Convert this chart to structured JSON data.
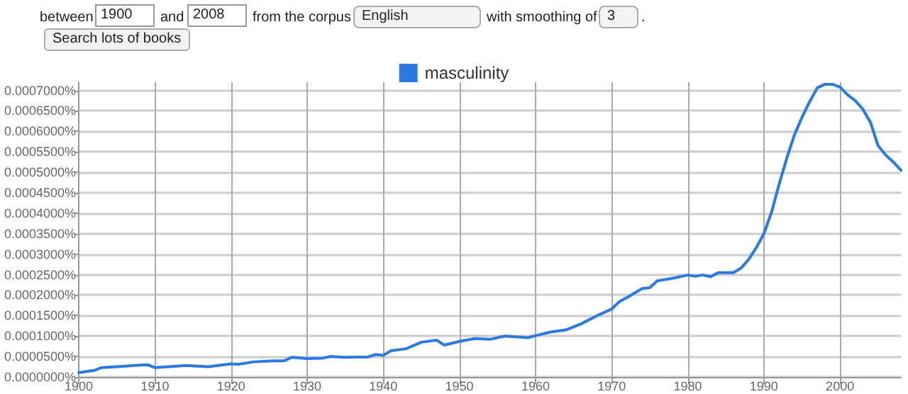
{
  "chart_data": {
    "type": "line",
    "annotations": [
      "between",
      "1900",
      "and",
      "2008",
      "from the corpus",
      "English",
      "with smoothing of",
      "3",
      ".",
      "Search lots of books"
    ],
    "x": [
      1900,
      1902,
      1903,
      1905,
      1908,
      1909,
      1910,
      1914,
      1917,
      1920,
      1921,
      1923,
      1925,
      1927,
      1928,
      1930,
      1932,
      1933,
      1935,
      1938,
      1939,
      1940,
      1941,
      1943,
      1945,
      1947,
      1948,
      1950,
      1952,
      1954,
      1956,
      1959,
      1960,
      1962,
      1964,
      1966,
      1968,
      1970,
      1971,
      1972,
      1974,
      1975,
      1976,
      1978,
      1980,
      1981,
      1982,
      1983,
      1984,
      1986,
      1987,
      1988,
      1989,
      1990,
      1991,
      1992,
      1993,
      1994,
      1995,
      1996,
      1997,
      1998,
      1999,
      2000,
      2001,
      2002,
      2003,
      2004,
      2005,
      2006,
      2007,
      2008
    ],
    "series": [
      {
        "name": "masculinity",
        "color": "#2a7ae2",
        "values": [
          1.1e-05,
          1.6e-05,
          2.3e-05,
          2.5e-05,
          2.9e-05,
          3e-05,
          2.3e-05,
          2.8e-05,
          2.5e-05,
          3.2e-05,
          3.1e-05,
          3.7e-05,
          3.9e-05,
          4e-05,
          4.8e-05,
          4.5e-05,
          4.6e-05,
          5e-05,
          4.8e-05,
          4.9e-05,
          5.5e-05,
          5.3e-05,
          6.4e-05,
          6.9e-05,
          8.5e-05,
          9e-05,
          7.8e-05,
          8.7e-05,
          9.4e-05,
          9.2e-05,
          0.0001,
          9.6e-05,
          0.000101,
          0.00011,
          0.000115,
          0.00013,
          0.000149,
          0.000166,
          0.000184,
          0.000194,
          0.000216,
          0.000218,
          0.000235,
          0.000241,
          0.000249,
          0.000246,
          0.000249,
          0.000245,
          0.000255,
          0.000255,
          0.000266,
          0.000287,
          0.000316,
          0.00035,
          0.000402,
          0.000471,
          0.000534,
          0.000591,
          0.000634,
          0.000672,
          0.000706,
          0.000715,
          0.000715,
          0.000708,
          0.000689,
          0.000675,
          0.000654,
          0.000622,
          0.000565,
          0.000542,
          0.000525,
          0.000505
        ]
      }
    ],
    "xlim": [
      1900,
      2008
    ],
    "xticks": [
      1900,
      1910,
      1920,
      1930,
      1940,
      1950,
      1960,
      1970,
      1980,
      1990,
      2000
    ],
    "ylim": [
      0,
      0.00072
    ],
    "yticks": [
      {
        "value": 0,
        "label": "0.0000000%"
      },
      {
        "value": 5e-05,
        "label": "0.0000500%"
      },
      {
        "value": 0.0001,
        "label": "0.0001000%"
      },
      {
        "value": 0.00015,
        "label": "0.0001500%"
      },
      {
        "value": 0.0002,
        "label": "0.0002000%"
      },
      {
        "value": 0.00025,
        "label": "0.0002500%"
      },
      {
        "value": 0.0003,
        "label": "0.0003000%"
      },
      {
        "value": 0.00035,
        "label": "0.0003500%"
      },
      {
        "value": 0.0004,
        "label": "0.0004000%"
      },
      {
        "value": 0.00045,
        "label": "0.0004500%"
      },
      {
        "value": 0.0005,
        "label": "0.0005000%"
      },
      {
        "value": 0.00055,
        "label": "0.0005500%"
      },
      {
        "value": 0.0006,
        "label": "0.0006000%"
      },
      {
        "value": 0.00065,
        "label": "0.0006500%"
      },
      {
        "value": 0.0007,
        "label": "0.0007000%"
      }
    ],
    "grid": true,
    "legend": "top",
    "marker": "none",
    "line_style": "solid"
  }
}
